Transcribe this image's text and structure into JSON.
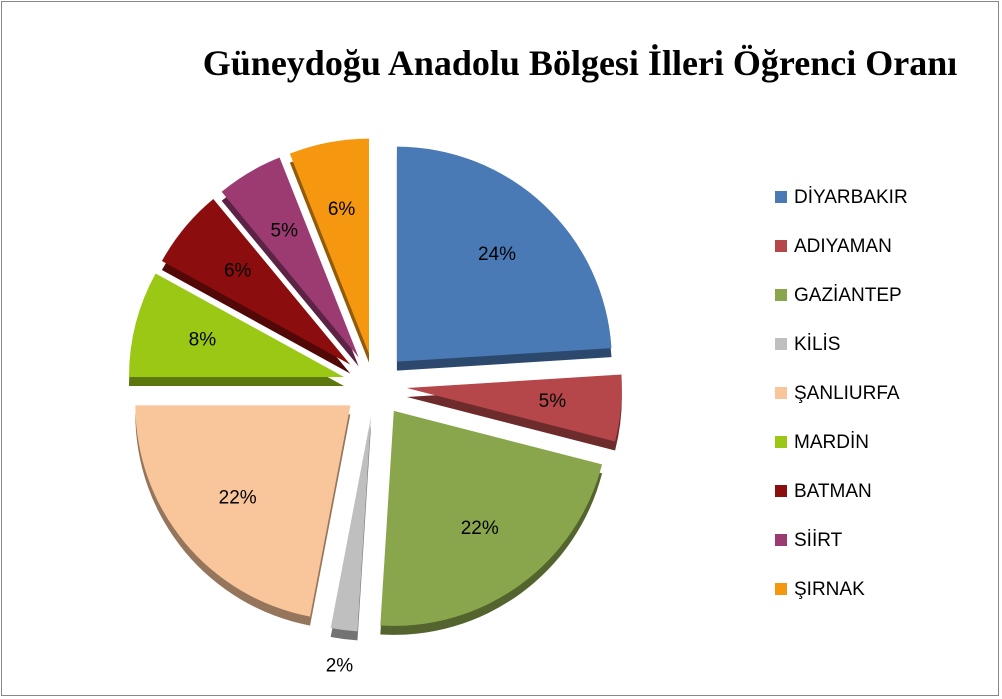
{
  "chart_data": {
    "type": "pie",
    "title": "Güneydoğu Anadolu Bölgesi İlleri Öğrenci Oranı",
    "categories": [
      "DİYARBAKIR",
      "ADIYAMAN",
      "GAZİANTEP",
      "KİLİS",
      "ŞANLIURFA",
      "MARDİN",
      "BATMAN",
      "SİİRT",
      "ŞIRNAK"
    ],
    "values": [
      24,
      5,
      22,
      2,
      22,
      8,
      6,
      5,
      6
    ],
    "value_labels": [
      "24%",
      "5%",
      "22%",
      "2%",
      "22%",
      "8%",
      "6%",
      "5%",
      "6%"
    ],
    "colors": [
      "#4a7ab5",
      "#b5474a",
      "#8aa64c",
      "#bfbfbf",
      "#f9c59a",
      "#9ac814",
      "#8b0d0d",
      "#9b3b72",
      "#f5980f"
    ],
    "legend": "right"
  }
}
